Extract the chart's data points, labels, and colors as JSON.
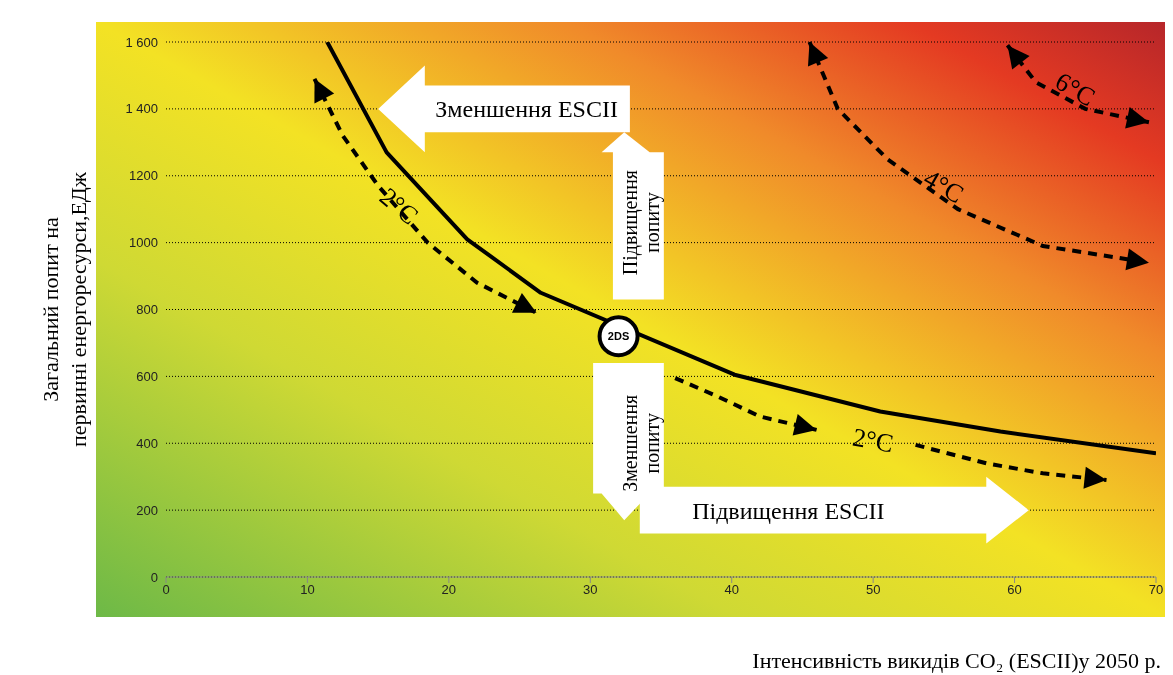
{
  "chart_data": {
    "type": "line",
    "xlabel": "Інтенсивність викидів CO₂ (ESCII)у 2050 р.",
    "ylabel": "Загальний попит на первинні енергоресурси,ЕДж",
    "series": [
      {
        "color": "#000000",
        "x": [
          11.4,
          15.6,
          21.3,
          26.5,
          40.2,
          50.5,
          59,
          70
        ],
        "values": [
          1600,
          1270,
          1010,
          850,
          605,
          495,
          435,
          370
        ]
      }
    ],
    "xlim": [
      0,
      70
    ],
    "xticks": [
      0,
      10,
      20,
      30,
      40,
      50,
      60,
      70
    ],
    "ylim": [
      0,
      1600
    ],
    "yticks": [
      0,
      200,
      400,
      600,
      800,
      1000,
      1200,
      {
        "value": 1400,
        "label": "1 400"
      },
      {
        "value": 1600,
        "label": "1 600"
      }
    ],
    "grid": "y",
    "legend": false,
    "marker": "none",
    "line_style": "solid",
    "annotations": [
      "Зменшення ESCII",
      "Підвищення ESCII",
      "Підвищення попиту",
      "Зменшення попиту",
      "2°C",
      "2°C",
      "4°C",
      "6°C",
      {
        "text": "2DS",
        "x": 32,
        "y": 720
      }
    ]
  }
}
